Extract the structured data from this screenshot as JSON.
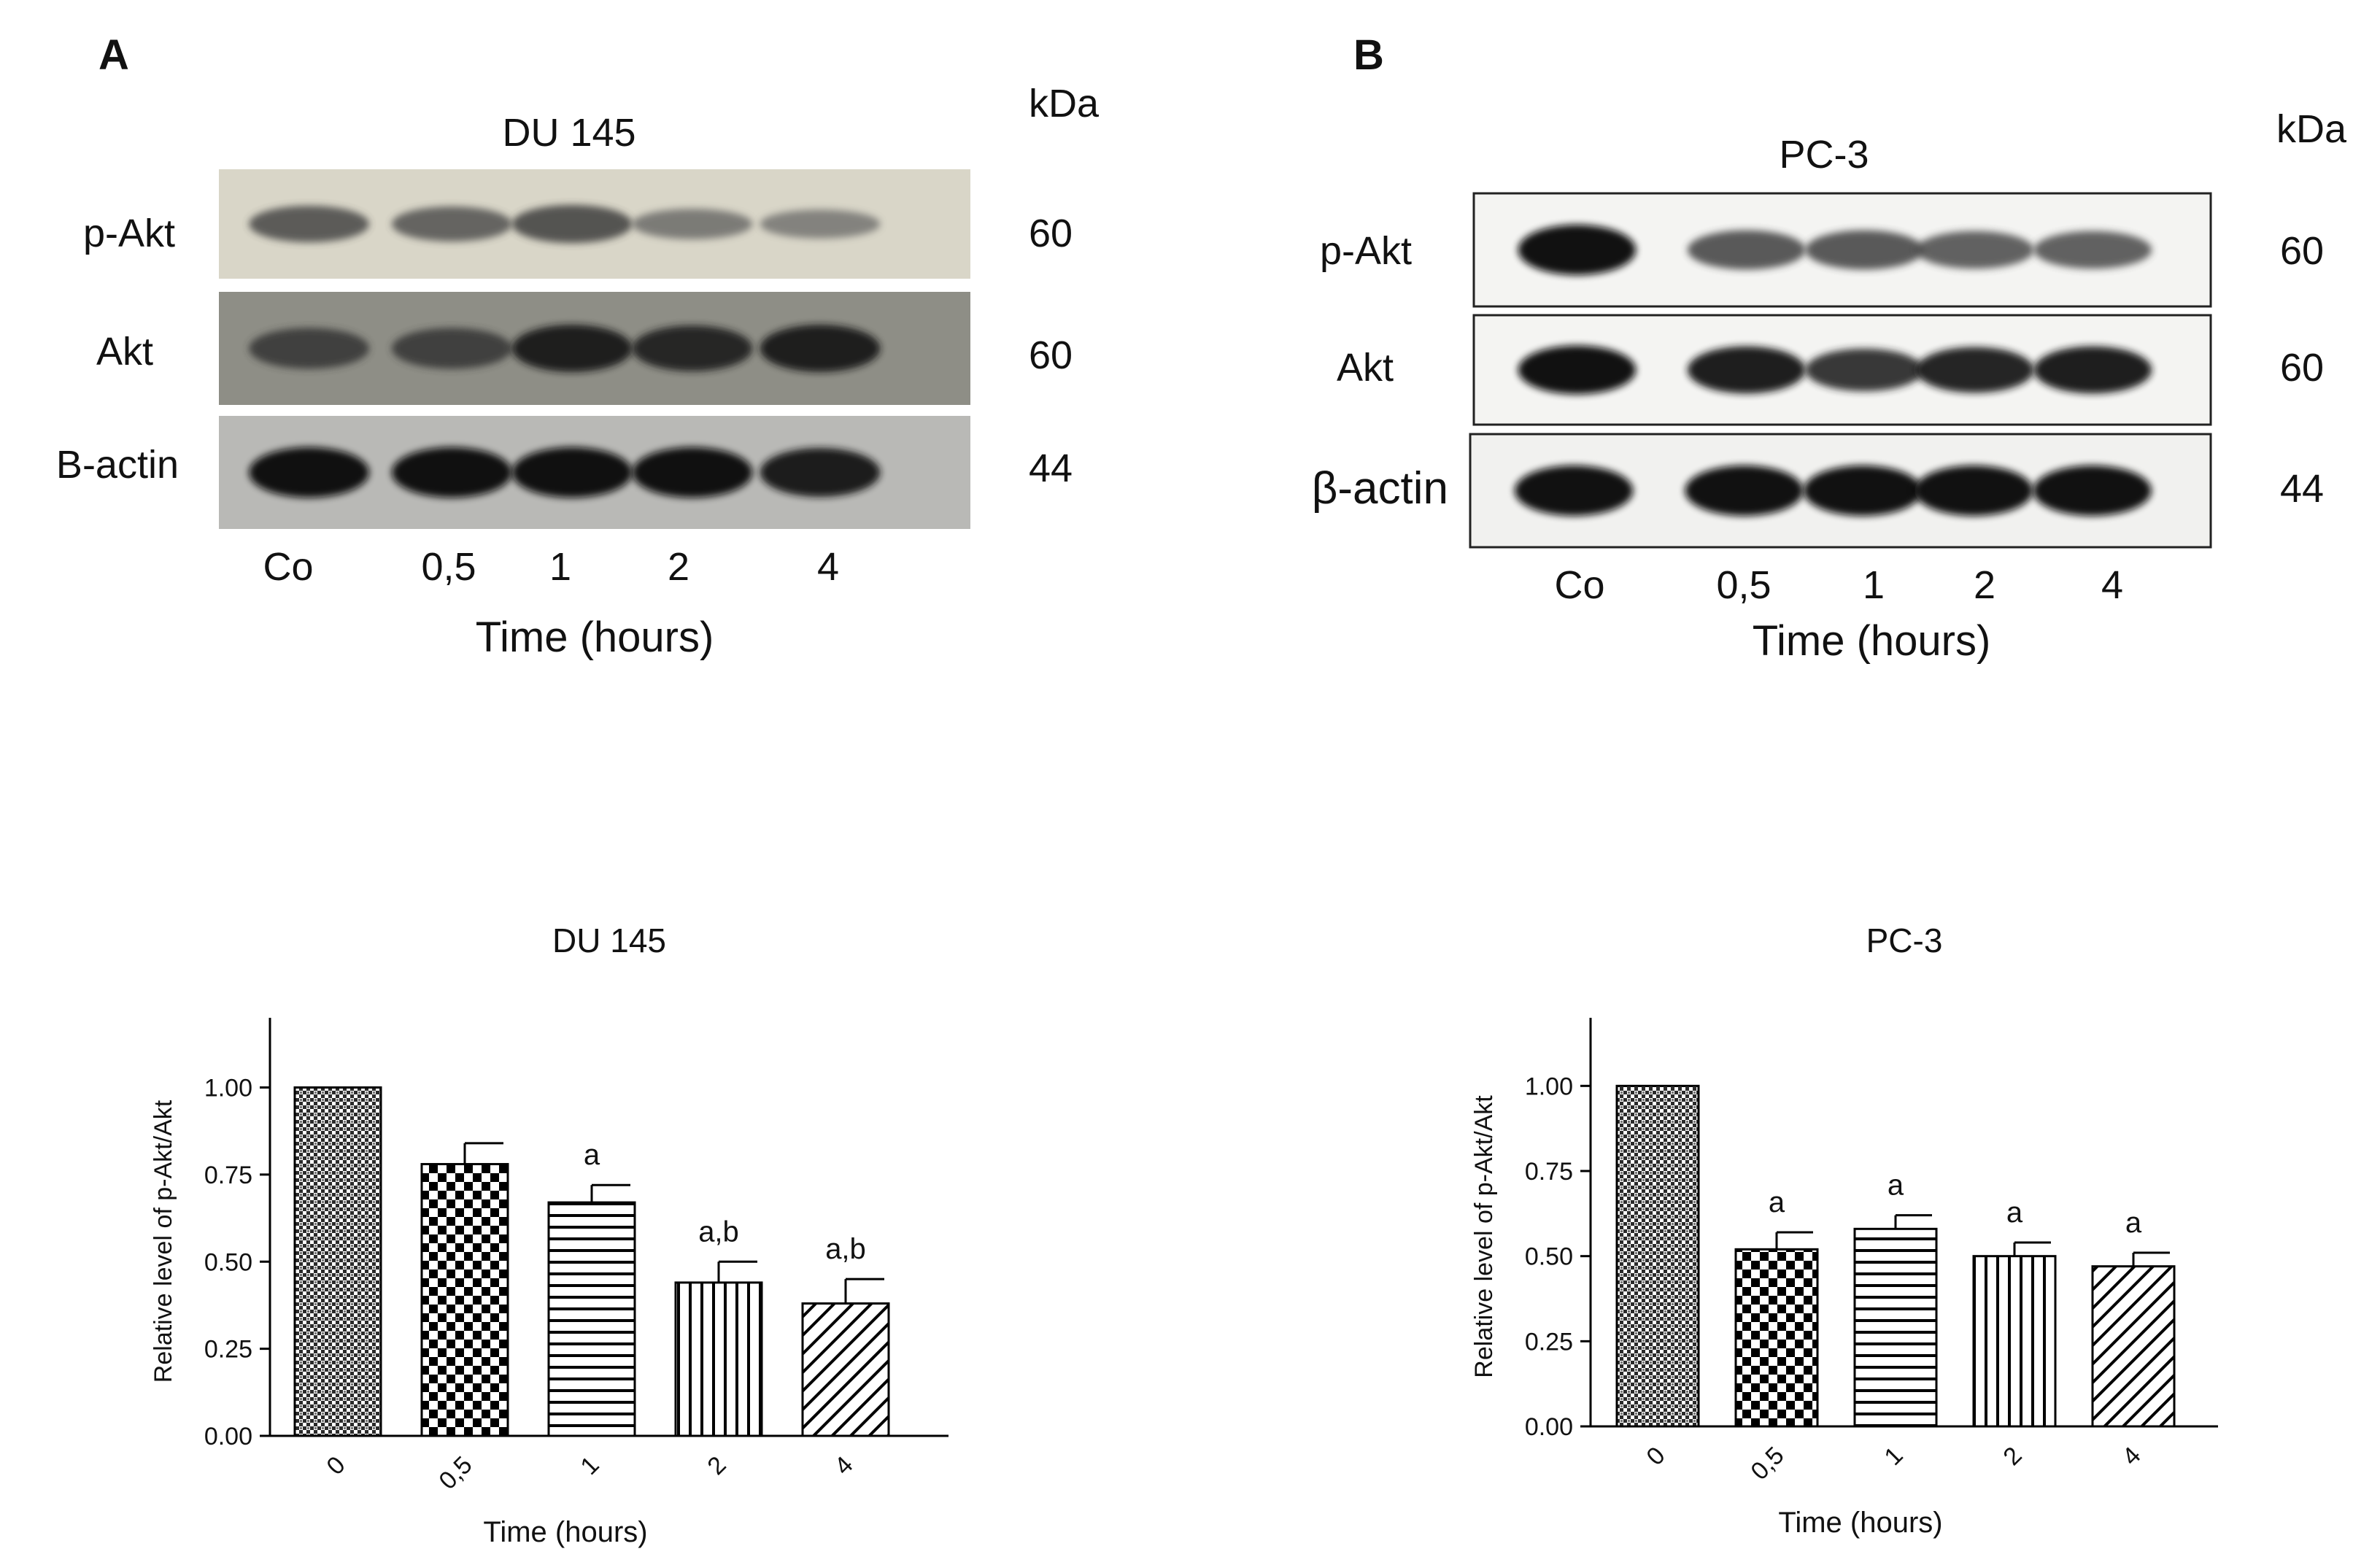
{
  "blots": [
    {
      "panel_letter": "A",
      "title": "DU 145",
      "kda_header": "kDa",
      "rows": [
        {
          "label": "p-Akt",
          "kda": "60",
          "intensity": [
            0.55,
            0.5,
            0.6,
            0.35,
            0.3
          ]
        },
        {
          "label": "Akt",
          "kda": "60",
          "intensity": [
            0.65,
            0.65,
            0.85,
            0.8,
            0.85
          ]
        },
        {
          "label": "B-actin",
          "kda": "44",
          "intensity": [
            0.95,
            0.95,
            0.95,
            0.95,
            0.9
          ]
        }
      ],
      "lanes": [
        "Co",
        "0,5",
        "1",
        "2",
        "4"
      ],
      "xlabel": "Time (hours)"
    },
    {
      "panel_letter": "B",
      "title": "PC-3",
      "kda_header": "kDa",
      "rows": [
        {
          "label": "p-Akt",
          "kda": "60",
          "intensity": [
            0.95,
            0.6,
            0.6,
            0.55,
            0.55
          ]
        },
        {
          "label": "Akt",
          "kda": "60",
          "intensity": [
            0.95,
            0.9,
            0.75,
            0.85,
            0.9
          ]
        },
        {
          "label": "β-actin",
          "kda": "44",
          "intensity": [
            0.95,
            0.95,
            0.95,
            0.95,
            0.95
          ]
        }
      ],
      "lanes": [
        "Co",
        "0,5",
        "1",
        "2",
        "4"
      ],
      "xlabel": "Time (hours)"
    }
  ],
  "chart_data": [
    {
      "type": "bar",
      "title": "DU 145",
      "xlabel": "Time (hours)",
      "ylabel": "Relative level of p-Akt/Akt",
      "categories": [
        "0",
        "0,5",
        "1",
        "2",
        "4"
      ],
      "values": [
        1.0,
        0.78,
        0.67,
        0.44,
        0.38
      ],
      "errors": [
        0.0,
        0.06,
        0.05,
        0.06,
        0.07
      ],
      "annotations": [
        "",
        "",
        "a",
        "a,b",
        "a,b"
      ],
      "ylim": [
        0,
        1.2
      ],
      "yticks": [
        "0.00",
        "0.25",
        "0.50",
        "0.75",
        "1.00"
      ],
      "patterns": [
        "fine-crosshatch",
        "checker",
        "horizontal-lines",
        "vertical-lines",
        "diagonal-lines"
      ]
    },
    {
      "type": "bar",
      "title": "PC-3",
      "xlabel": "Time (hours)",
      "ylabel": "Relative level of p-Akt/Akt",
      "categories": [
        "0",
        "0,5",
        "1",
        "2",
        "4"
      ],
      "values": [
        1.0,
        0.52,
        0.58,
        0.5,
        0.47
      ],
      "errors": [
        0.0,
        0.05,
        0.04,
        0.04,
        0.04
      ],
      "annotations": [
        "",
        "a",
        "a",
        "a",
        "a"
      ],
      "ylim": [
        0,
        1.2
      ],
      "yticks": [
        "0.00",
        "0.25",
        "0.50",
        "0.75",
        "1.00"
      ],
      "patterns": [
        "fine-crosshatch",
        "checker",
        "horizontal-lines",
        "vertical-lines",
        "diagonal-lines"
      ]
    }
  ]
}
